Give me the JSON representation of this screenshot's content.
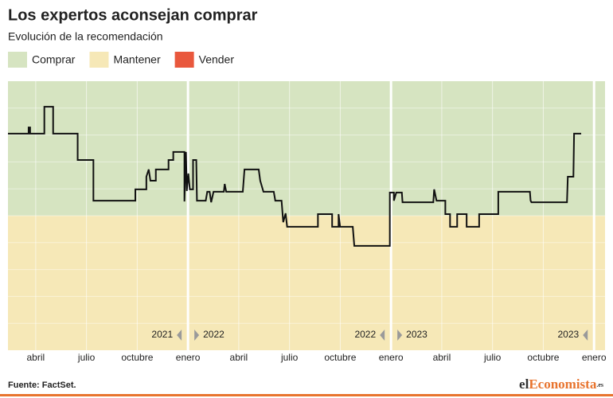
{
  "chart_data": {
    "type": "line",
    "title": "Los expertos aconsejan comprar",
    "subtitle": "Evolución de la recomendación",
    "zones": [
      {
        "name": "Comprar",
        "color": "#d6e4c1",
        "range": [
          5,
          10
        ]
      },
      {
        "name": "Mantener",
        "color": "#f6e8b7"
      },
      {
        "name": "Vender",
        "color": "#e9583d"
      }
    ],
    "zone_ranges_mantener": [
      0,
      5
    ],
    "x": [
      1.36,
      2.58,
      2.58,
      2.67,
      2.67,
      3.51,
      3.51,
      4.03,
      4.03,
      5.48,
      5.48,
      6.41,
      6.41,
      8.89,
      8.89,
      9.54,
      9.54,
      9.68,
      9.78,
      10.1,
      10.1,
      10.85,
      10.85,
      11.13,
      11.13,
      11.79,
      11.79,
      11.88,
      11.93,
      12.02,
      12.11,
      12.3,
      12.3,
      12.49,
      12.53,
      13.05,
      13.14,
      13.28,
      13.37,
      13.51,
      14.12,
      14.17,
      14.26,
      15.24,
      15.34,
      16.18,
      16.27,
      16.46,
      17.07,
      17.16,
      17.53,
      17.63,
      17.77,
      17.86,
      19.68,
      19.68,
      20.52,
      20.52,
      20.9,
      20.9,
      20.99,
      21.74,
      21.83,
      23.93,
      23.93,
      24.17,
      24.17,
      24.31,
      24.64,
      24.68,
      26.5,
      26.55,
      26.69,
      27.21,
      27.21,
      27.49,
      27.49,
      27.91,
      27.91,
      28.47,
      28.47,
      29.21,
      29.21,
      30.34,
      30.34,
      32.21,
      32.25,
      32.3,
      34.4,
      34.45,
      34.78,
      34.82,
      35.24
    ],
    "series": [
      {
        "color": "#111111",
        "values": [
          8.05,
          8.05,
          8.28,
          8.28,
          8.05,
          8.05,
          9.05,
          9.05,
          8.05,
          8.05,
          7.07,
          7.07,
          5.56,
          5.56,
          5.98,
          5.98,
          6.45,
          6.72,
          6.3,
          6.3,
          6.72,
          6.72,
          7.07,
          7.07,
          7.37,
          7.37,
          5.53,
          7.37,
          5.92,
          6.57,
          5.98,
          5.98,
          7.07,
          7.07,
          5.56,
          5.56,
          5.89,
          5.89,
          5.5,
          5.89,
          5.89,
          6.18,
          5.89,
          5.89,
          6.72,
          6.72,
          6.3,
          5.89,
          5.89,
          5.56,
          5.56,
          4.76,
          5.09,
          4.59,
          4.59,
          5.06,
          5.06,
          4.59,
          4.59,
          5.06,
          4.59,
          4.59,
          3.88,
          3.88,
          5.86,
          5.86,
          5.56,
          5.86,
          5.86,
          5.5,
          5.5,
          5.98,
          5.56,
          5.56,
          5.06,
          5.06,
          4.59,
          4.59,
          5.06,
          5.06,
          4.59,
          4.59,
          5.06,
          5.06,
          5.89,
          5.89,
          5.56,
          5.5,
          5.5,
          6.45,
          6.45,
          8.05,
          8.05
        ]
      }
    ],
    "xlim": [
      1.36,
      36.65
    ],
    "ylim": [
      0,
      10
    ],
    "yticks": [
      1,
      2,
      3,
      4,
      5,
      6,
      7,
      8,
      9
    ],
    "xticks": [
      {
        "value": 3,
        "label": "abril"
      },
      {
        "value": 6,
        "label": "julio"
      },
      {
        "value": 9,
        "label": "octubre"
      },
      {
        "value": 12,
        "label": "enero"
      },
      {
        "value": 15,
        "label": "abril"
      },
      {
        "value": 18,
        "label": "julio"
      },
      {
        "value": 21,
        "label": "octubre"
      },
      {
        "value": 24,
        "label": "enero"
      },
      {
        "value": 27,
        "label": "abril"
      },
      {
        "value": 30,
        "label": "julio"
      },
      {
        "value": 33,
        "label": "octubre"
      },
      {
        "value": 36,
        "label": "enero"
      }
    ],
    "annotations": [
      {
        "text": "2021",
        "x": 12,
        "side": "left"
      },
      {
        "text": "2022",
        "x": 12,
        "side": "right"
      },
      {
        "text": "2022",
        "x": 24,
        "side": "left"
      },
      {
        "text": "2023",
        "x": 24,
        "side": "right"
      },
      {
        "text": "2023",
        "x": 36,
        "side": "left"
      }
    ],
    "source": "Fuente: FactSet.",
    "brand": [
      "el",
      "Economista",
      ".es"
    ]
  }
}
